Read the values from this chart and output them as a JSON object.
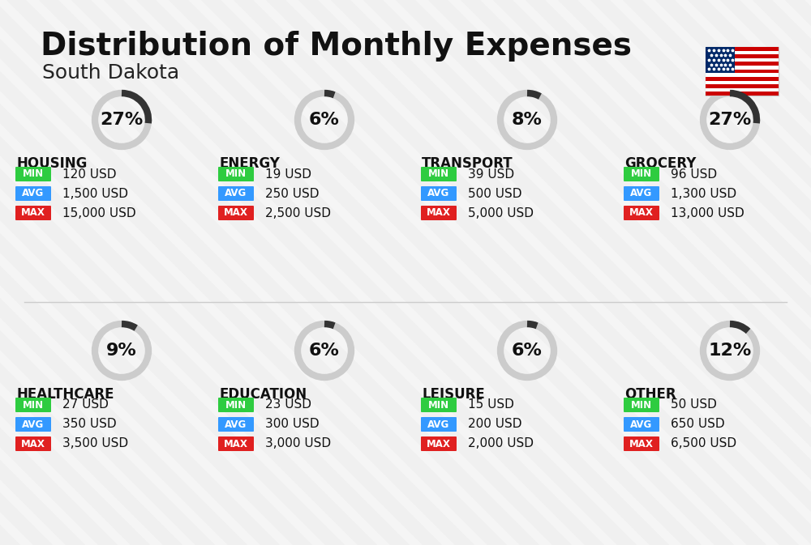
{
  "title": "Distribution of Monthly Expenses",
  "subtitle": "South Dakota",
  "background_color": "#f0f0f0",
  "categories": [
    {
      "name": "HOUSING",
      "pct": 27,
      "min_val": "120 USD",
      "avg_val": "1,500 USD",
      "max_val": "15,000 USD",
      "row": 0,
      "col": 0
    },
    {
      "name": "ENERGY",
      "pct": 6,
      "min_val": "19 USD",
      "avg_val": "250 USD",
      "max_val": "2,500 USD",
      "row": 0,
      "col": 1
    },
    {
      "name": "TRANSPORT",
      "pct": 8,
      "min_val": "39 USD",
      "avg_val": "500 USD",
      "max_val": "5,000 USD",
      "row": 0,
      "col": 2
    },
    {
      "name": "GROCERY",
      "pct": 27,
      "min_val": "96 USD",
      "avg_val": "1,300 USD",
      "max_val": "13,000 USD",
      "row": 0,
      "col": 3
    },
    {
      "name": "HEALTHCARE",
      "pct": 9,
      "min_val": "27 USD",
      "avg_val": "350 USD",
      "max_val": "3,500 USD",
      "row": 1,
      "col": 0
    },
    {
      "name": "EDUCATION",
      "pct": 6,
      "min_val": "23 USD",
      "avg_val": "300 USD",
      "max_val": "3,000 USD",
      "row": 1,
      "col": 1
    },
    {
      "name": "LEISURE",
      "pct": 6,
      "min_val": "15 USD",
      "avg_val": "200 USD",
      "max_val": "2,000 USD",
      "row": 1,
      "col": 2
    },
    {
      "name": "OTHER",
      "pct": 12,
      "min_val": "50 USD",
      "avg_val": "650 USD",
      "max_val": "6,500 USD",
      "row": 1,
      "col": 3
    }
  ],
  "min_color": "#2ecc40",
  "avg_color": "#3399ff",
  "max_color": "#e02020",
  "label_color": "#ffffff",
  "arc_color_filled": "#333333",
  "arc_color_empty": "#cccccc",
  "title_fontsize": 28,
  "subtitle_fontsize": 18,
  "cat_fontsize": 12,
  "val_fontsize": 11,
  "pct_fontsize": 16
}
